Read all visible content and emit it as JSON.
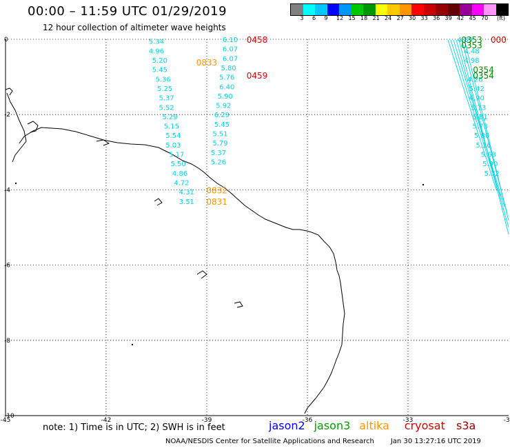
{
  "header": {
    "title": "00:00 – 11:59 UTC 01/29/2019",
    "subtitle": "12 hour collection of altimeter wave heights"
  },
  "colorbar": {
    "unit_label": "(ft)",
    "colors": [
      "#808080",
      "#00ffff",
      "#00c8ff",
      "#0000ff",
      "#0096ff",
      "#00c800",
      "#009600",
      "#ffff00",
      "#ffc800",
      "#ff9600",
      "#ff0000",
      "#c80000",
      "#960000",
      "#640000",
      "#960096",
      "#ff00ff",
      "#ff96ff",
      "#000000"
    ],
    "labels": [
      "3",
      "6",
      "9",
      "12",
      "15",
      "18",
      "21",
      "24",
      "27",
      "30",
      "33",
      "36",
      "39",
      "42",
      "45",
      "70"
    ]
  },
  "map": {
    "lon_ticks": [
      "-45",
      "-42",
      "-39",
      "-36",
      "-33",
      "-30"
    ],
    "lat_ticks": [
      "0",
      "-2",
      "-4",
      "-6",
      "-8",
      "-10"
    ],
    "lon_range": [
      -45,
      -30
    ],
    "lat_range": [
      -10,
      0
    ],
    "grid": true,
    "colors": {
      "swh": "#00d2e6",
      "altika": "#ff9600",
      "cryosat": "#dc0000",
      "jason3": "#008c00"
    }
  },
  "chart_data": {
    "type": "map",
    "swh_labels": [
      {
        "lon": -40.5,
        "lat": -0.05,
        "v": "5.34"
      },
      {
        "lon": -40.5,
        "lat": -0.3,
        "v": "4.96"
      },
      {
        "lon": -40.4,
        "lat": -0.55,
        "v": "5.20"
      },
      {
        "lon": -40.4,
        "lat": -0.8,
        "v": "5.45"
      },
      {
        "lon": -40.3,
        "lat": -1.05,
        "v": "5.36"
      },
      {
        "lon": -40.25,
        "lat": -1.3,
        "v": "5.25"
      },
      {
        "lon": -40.2,
        "lat": -1.55,
        "v": "5.37"
      },
      {
        "lon": -40.2,
        "lat": -1.8,
        "v": "5.52"
      },
      {
        "lon": -40.1,
        "lat": -2.05,
        "v": "5.29"
      },
      {
        "lon": -40.05,
        "lat": -2.3,
        "v": "5.15"
      },
      {
        "lon": -40.0,
        "lat": -2.55,
        "v": "5.54"
      },
      {
        "lon": -40.0,
        "lat": -2.8,
        "v": "5.03"
      },
      {
        "lon": -39.9,
        "lat": -3.05,
        "v": "5.17"
      },
      {
        "lon": -39.85,
        "lat": -3.3,
        "v": "5.50"
      },
      {
        "lon": -39.8,
        "lat": -3.55,
        "v": "4.86"
      },
      {
        "lon": -39.75,
        "lat": -3.8,
        "v": "4.72"
      },
      {
        "lon": -39.6,
        "lat": -4.05,
        "v": "4.31"
      },
      {
        "lon": -39.6,
        "lat": -4.3,
        "v": "3.51"
      },
      {
        "lon": -38.3,
        "lat": -0.0,
        "v": "6.10"
      },
      {
        "lon": -38.3,
        "lat": -0.25,
        "v": "6.07"
      },
      {
        "lon": -38.3,
        "lat": -0.5,
        "v": "6.07"
      },
      {
        "lon": -38.35,
        "lat": -0.75,
        "v": "5.80"
      },
      {
        "lon": -38.4,
        "lat": -1.0,
        "v": "5.76"
      },
      {
        "lon": -38.4,
        "lat": -1.25,
        "v": "6.40"
      },
      {
        "lon": -38.45,
        "lat": -1.5,
        "v": "5.90"
      },
      {
        "lon": -38.5,
        "lat": -1.75,
        "v": "5.92"
      },
      {
        "lon": -38.55,
        "lat": -2.0,
        "v": "6.29"
      },
      {
        "lon": -38.55,
        "lat": -2.25,
        "v": "5.45"
      },
      {
        "lon": -38.6,
        "lat": -2.5,
        "v": "5.51"
      },
      {
        "lon": -38.6,
        "lat": -2.75,
        "v": "5.79"
      },
      {
        "lon": -38.65,
        "lat": -3.0,
        "v": "5.37"
      },
      {
        "lon": -38.65,
        "lat": -3.25,
        "v": "5.26"
      },
      {
        "lon": -31.3,
        "lat": 0.0,
        "v": "4.89"
      },
      {
        "lon": -31.1,
        "lat": -0.3,
        "v": "4.48"
      },
      {
        "lon": -31.1,
        "lat": -0.55,
        "v": "4.98"
      },
      {
        "lon": -31.0,
        "lat": -1.05,
        "v": "4.26"
      },
      {
        "lon": -30.95,
        "lat": -1.3,
        "v": "5.42"
      },
      {
        "lon": -30.95,
        "lat": -1.55,
        "v": "4.90"
      },
      {
        "lon": -30.9,
        "lat": -1.8,
        "v": "5.73"
      },
      {
        "lon": -30.85,
        "lat": -2.05,
        "v": "5.81"
      },
      {
        "lon": -30.85,
        "lat": -2.3,
        "v": "5.73"
      },
      {
        "lon": -30.8,
        "lat": -2.55,
        "v": "5.80"
      },
      {
        "lon": -30.75,
        "lat": -2.8,
        "v": "5.16"
      },
      {
        "lon": -30.6,
        "lat": -3.05,
        "v": "5.63"
      },
      {
        "lon": -30.55,
        "lat": -3.3,
        "v": "5.90"
      },
      {
        "lon": -30.5,
        "lat": -3.55,
        "v": "5.72"
      }
    ],
    "time_labels": [
      {
        "lon": -37.5,
        "lat": 0.0,
        "t": "0458",
        "sat": "cryosat"
      },
      {
        "lon": -37.5,
        "lat": -0.95,
        "t": "0459",
        "sat": "cryosat"
      },
      {
        "lon": -39.0,
        "lat": -0.6,
        "t": "0833",
        "sat": "altika"
      },
      {
        "lon": -38.7,
        "lat": -4.0,
        "t": "0832",
        "sat": "altika"
      },
      {
        "lon": -38.7,
        "lat": -4.3,
        "t": "0831",
        "sat": "altika"
      },
      {
        "lon": -31.1,
        "lat": 0.0,
        "t": "0353",
        "sat": "jason3"
      },
      {
        "lon": -31.1,
        "lat": -0.15,
        "t": "0353",
        "sat": "jason3"
      },
      {
        "lon": -30.75,
        "lat": -0.8,
        "t": "0354",
        "sat": "jason3"
      },
      {
        "lon": -30.75,
        "lat": -0.95,
        "t": "0354",
        "sat": "jason3"
      },
      {
        "lon": -30.3,
        "lat": 0.0,
        "t": "000",
        "sat": "cryosat"
      }
    ]
  },
  "footer": {
    "note": "note: 1) Time is in UTC; 2) SWH is in feet",
    "legend": [
      {
        "name": "jason2",
        "color": "#0000ff"
      },
      {
        "name": "jason3",
        "color": "#00a000"
      },
      {
        "name": "altika",
        "color": "#ff9600"
      },
      {
        "name": "cryosat",
        "color": "#dc0000"
      },
      {
        "name": "s3a",
        "color": "#960000"
      }
    ],
    "credit": "NOAA/NESDIS Center for Satellite Applications and Research",
    "timestamp": "Jan 30 13:27:16 UTC 2019"
  }
}
